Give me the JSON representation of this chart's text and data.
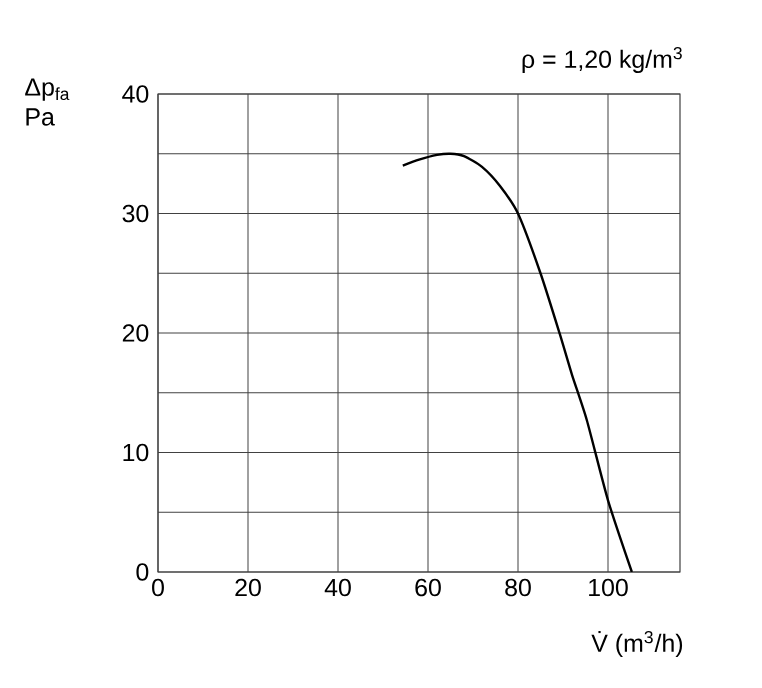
{
  "chart_data": {
    "type": "line",
    "title": "ρ = 1,20 kg/m$^{3}$",
    "xlabel": "V̇ (m$^{3}$/h)",
    "ylabel": "Δp$_{fa}$ Pa",
    "xlim": [
      0,
      116
    ],
    "ylim": [
      0,
      40
    ],
    "xticks": [
      0,
      20,
      40,
      60,
      80,
      100
    ],
    "yticks": [
      0,
      {
        "value": 5,
        "label": null
      },
      10,
      {
        "value": 15,
        "label": null
      },
      20,
      {
        "value": 25,
        "label": null
      },
      30,
      {
        "value": 35,
        "label": null
      },
      40
    ],
    "grid": true,
    "marker": "none",
    "line_style": "solid",
    "series": [
      {
        "color": "#000000",
        "x": [
          54.4,
          58,
          62,
          65,
          68,
          72,
          76,
          80,
          85,
          89.3,
          92,
          95.3,
          100,
          105.3
        ],
        "values": [
          34.0,
          34.5,
          34.9,
          35.0,
          34.8,
          33.9,
          32.3,
          30.0,
          25.0,
          19.9,
          16.5,
          12.7,
          6.0,
          0
        ]
      }
    ]
  }
}
